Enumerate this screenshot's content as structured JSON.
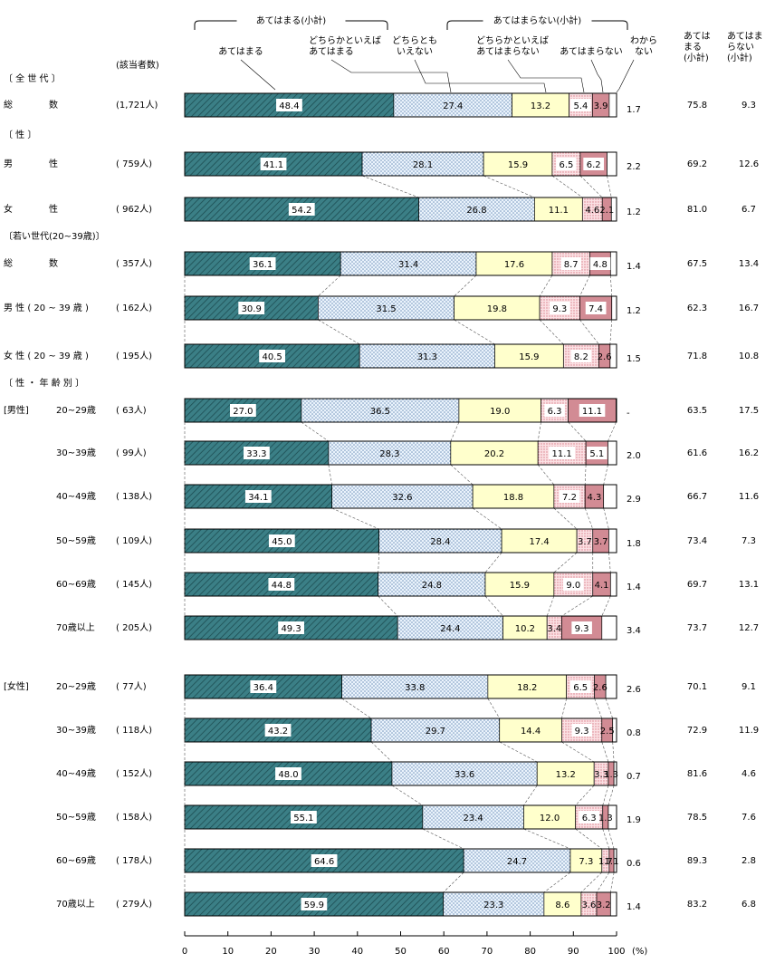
{
  "chart_data": {
    "type": "stacked-bar",
    "xlabel": "(%)",
    "xlim": [
      0,
      100
    ],
    "x_ticks": [
      0,
      10,
      20,
      30,
      40,
      50,
      60,
      70,
      80,
      90,
      100
    ],
    "respondents_header": "(該当者数)",
    "group_labels": {
      "agree_subtotal": "あてはまる(小計)",
      "disagree_subtotal": "あてはまらない(小計)"
    },
    "series": [
      {
        "name": "あてはまる",
        "color": "#3b7f86"
      },
      {
        "name": "どちらかといえば あてはまる",
        "color": "#dbe9f6"
      },
      {
        "name": "どちらとも いえない",
        "color": "#ffffcc"
      },
      {
        "name": "どちらかといえば あてはまらない",
        "color": "#f6d4d8"
      },
      {
        "name": "あてはまらない",
        "color": "#e7b3b9"
      },
      {
        "name": "わから ない",
        "color": "#ffffff"
      }
    ],
    "legend_labels": [
      {
        "text": "あてはまる"
      },
      {
        "text": "どちらかといえば"
      },
      {
        "text": "あてはまる"
      },
      {
        "text": "どちらとも"
      },
      {
        "text": "いえない"
      },
      {
        "text": "どちらかといえば"
      },
      {
        "text": "あてはまらない"
      },
      {
        "text": "あてはまらない"
      },
      {
        "text": "わから"
      },
      {
        "text": "ない"
      }
    ],
    "summary_headers": [
      {
        "text": "あては"
      },
      {
        "text": "まる"
      },
      {
        "text": "(小計)"
      },
      {
        "text": "あてはま"
      },
      {
        "text": "らない"
      },
      {
        "text": "(小計)"
      }
    ],
    "section_headers": [
      {
        "text": "〔 全 世 代 〕"
      },
      {
        "text": "〔 性 〕"
      },
      {
        "text": "〔若い世代(20~39歳)〕"
      },
      {
        "text": "〔 性 ・ 年 齢 別 〕"
      }
    ],
    "group_tags": [
      {
        "text": "[男性]"
      },
      {
        "text": "[女性]"
      }
    ],
    "rows": [
      {
        "label": "総　　　　数",
        "n": "(1,721人)",
        "values": [
          48.4,
          27.4,
          13.2,
          5.4,
          3.9,
          1.7
        ],
        "labels": [
          "48.4",
          "27.4",
          "13.2",
          "5.4",
          "3.9",
          "1.7"
        ],
        "agree": "75.8",
        "disagree": "9.3"
      },
      {
        "label": "男　　　　性",
        "n": "( 759人)",
        "values": [
          41.1,
          28.1,
          15.9,
          6.5,
          6.2,
          2.2
        ],
        "labels": [
          "41.1",
          "28.1",
          "15.9",
          "6.5",
          "6.2",
          "2.2"
        ],
        "agree": "69.2",
        "disagree": "12.6"
      },
      {
        "label": "女　　　　性",
        "n": "( 962人)",
        "values": [
          54.2,
          26.8,
          11.1,
          4.6,
          2.1,
          1.2
        ],
        "labels": [
          "54.2",
          "26.8",
          "11.1",
          "4.6",
          "2.1",
          "1.2"
        ],
        "agree": "81.0",
        "disagree": "6.7"
      },
      {
        "label": "総　　　　数",
        "n": "( 357人)",
        "values": [
          36.1,
          31.4,
          17.6,
          8.7,
          4.8,
          1.4
        ],
        "labels": [
          "36.1",
          "31.4",
          "17.6",
          "8.7",
          "4.8",
          "1.4"
        ],
        "agree": "67.5",
        "disagree": "13.4"
      },
      {
        "label": "男 性 ( 20 ~ 39 歳 )",
        "n": "( 162人)",
        "values": [
          30.9,
          31.5,
          19.8,
          9.3,
          7.4,
          1.2
        ],
        "labels": [
          "30.9",
          "31.5",
          "19.8",
          "9.3",
          "7.4",
          "1.2"
        ],
        "agree": "62.3",
        "disagree": "16.7"
      },
      {
        "label": "女 性 ( 20 ~ 39 歳 )",
        "n": "( 195人)",
        "values": [
          40.5,
          31.3,
          15.9,
          8.2,
          2.6,
          1.5
        ],
        "labels": [
          "40.5",
          "31.3",
          "15.9",
          "8.2",
          "2.6",
          "1.5"
        ],
        "agree": "71.8",
        "disagree": "10.8"
      },
      {
        "label": "20~29歳",
        "n": "( 63人)",
        "values": [
          27.0,
          36.5,
          19.0,
          6.3,
          11.1,
          0
        ],
        "labels": [
          "27.0",
          "36.5",
          "19.0",
          "6.3",
          "11.1",
          "-"
        ],
        "agree": "63.5",
        "disagree": "17.5"
      },
      {
        "label": "30~39歳",
        "n": "( 99人)",
        "values": [
          33.3,
          28.3,
          20.2,
          11.1,
          5.1,
          2.0
        ],
        "labels": [
          "33.3",
          "28.3",
          "20.2",
          "11.1",
          "5.1",
          "2.0"
        ],
        "agree": "61.6",
        "disagree": "16.2"
      },
      {
        "label": "40~49歳",
        "n": "( 138人)",
        "values": [
          34.1,
          32.6,
          18.8,
          7.2,
          4.3,
          2.9
        ],
        "labels": [
          "34.1",
          "32.6",
          "18.8",
          "7.2",
          "4.3",
          "2.9"
        ],
        "agree": "66.7",
        "disagree": "11.6"
      },
      {
        "label": "50~59歳",
        "n": "( 109人)",
        "values": [
          45.0,
          28.4,
          17.4,
          3.7,
          3.7,
          1.8
        ],
        "labels": [
          "45.0",
          "28.4",
          "17.4",
          "3.7",
          "3.7",
          "1.8"
        ],
        "agree": "73.4",
        "disagree": "7.3"
      },
      {
        "label": "60~69歳",
        "n": "( 145人)",
        "values": [
          44.8,
          24.8,
          15.9,
          9.0,
          4.1,
          1.4
        ],
        "labels": [
          "44.8",
          "24.8",
          "15.9",
          "9.0",
          "4.1",
          "1.4"
        ],
        "agree": "69.7",
        "disagree": "13.1"
      },
      {
        "label": "70歳以上",
        "n": "( 205人)",
        "values": [
          49.3,
          24.4,
          10.2,
          3.4,
          9.3,
          3.4
        ],
        "labels": [
          "49.3",
          "24.4",
          "10.2",
          "3.4",
          "9.3",
          "3.4"
        ],
        "agree": "73.7",
        "disagree": "12.7"
      },
      {
        "label": "20~29歳",
        "n": "( 77人)",
        "values": [
          36.4,
          33.8,
          18.2,
          6.5,
          2.6,
          2.6
        ],
        "labels": [
          "36.4",
          "33.8",
          "18.2",
          "6.5",
          "2.6",
          "2.6"
        ],
        "agree": "70.1",
        "disagree": "9.1"
      },
      {
        "label": "30~39歳",
        "n": "( 118人)",
        "values": [
          43.2,
          29.7,
          14.4,
          9.3,
          2.5,
          0.8
        ],
        "labels": [
          "43.2",
          "29.7",
          "14.4",
          "9.3",
          "2.5",
          "0.8"
        ],
        "agree": "72.9",
        "disagree": "11.9"
      },
      {
        "label": "40~49歳",
        "n": "( 152人)",
        "values": [
          48.0,
          33.6,
          13.2,
          3.3,
          1.3,
          0.7
        ],
        "labels": [
          "48.0",
          "33.6",
          "13.2",
          "3.3",
          "1.3",
          "0.7"
        ],
        "agree": "81.6",
        "disagree": "4.6"
      },
      {
        "label": "50~59歳",
        "n": "( 158人)",
        "values": [
          55.1,
          23.4,
          12.0,
          6.3,
          1.3,
          1.9
        ],
        "labels": [
          "55.1",
          "23.4",
          "12.0",
          "6.3",
          "1.3",
          "1.9"
        ],
        "agree": "78.5",
        "disagree": "7.6"
      },
      {
        "label": "60~69歳",
        "n": "( 178人)",
        "values": [
          64.6,
          24.7,
          7.3,
          1.7,
          1.1,
          0.6
        ],
        "labels": [
          "64.6",
          "24.7",
          "7.3",
          "1.7",
          "1.1",
          "0.6"
        ],
        "agree": "89.3",
        "disagree": "2.8"
      },
      {
        "label": "70歳以上",
        "n": "( 279人)",
        "values": [
          59.9,
          23.3,
          8.6,
          3.6,
          3.2,
          1.4
        ],
        "labels": [
          "59.9",
          "23.3",
          "8.6",
          "3.6",
          "3.2",
          "1.4"
        ],
        "agree": "83.2",
        "disagree": "6.8"
      }
    ]
  }
}
